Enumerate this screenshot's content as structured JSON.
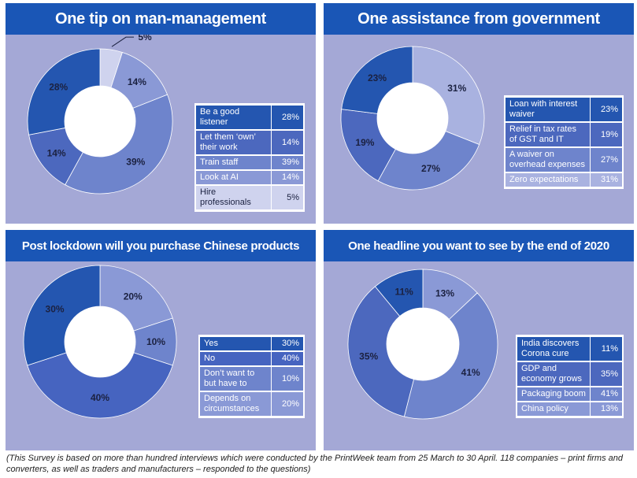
{
  "chart_data": [
    {
      "type": "pie",
      "title": "One tip on man-management",
      "rows": [
        {
          "label": "Be a good listener",
          "value": 28,
          "value_text": "28%",
          "color": "#2456b0"
        },
        {
          "label": "Let them ‘own’ their work",
          "value": 14,
          "value_text": "14%",
          "color": "#4c68be"
        },
        {
          "label": "Train staff",
          "value": 39,
          "value_text": "39%",
          "color": "#6e84cc"
        },
        {
          "label": "Look at AI",
          "value": 14,
          "value_text": "14%",
          "color": "#8a99d6"
        },
        {
          "label": "Hire professionals",
          "value": 5,
          "value_text": "5%",
          "color": "#cfd3ee"
        }
      ],
      "ring_order": [
        4,
        3,
        2,
        1,
        0
      ]
    },
    {
      "type": "pie",
      "title": "One assistance from government",
      "rows": [
        {
          "label": "Loan with interest waiver",
          "value": 23,
          "value_text": "23%",
          "color": "#2456b0"
        },
        {
          "label": "Relief in tax rates of GST and IT",
          "value": 19,
          "value_text": "19%",
          "color": "#4c68be"
        },
        {
          "label": "A waiver on overhead expenses",
          "value": 27,
          "value_text": "27%",
          "color": "#6e84cc"
        },
        {
          "label": "Zero expectations",
          "value": 31,
          "value_text": "31%",
          "color": "#a9b2e0"
        }
      ],
      "ring_order": [
        3,
        2,
        1,
        0
      ]
    },
    {
      "type": "pie",
      "title": "Post lockdown will you purchase Chinese products",
      "rows": [
        {
          "label": "Yes",
          "value": 30,
          "value_text": "30%",
          "color": "#2456b0"
        },
        {
          "label": "No",
          "value": 40,
          "value_text": "40%",
          "color": "#4664c0"
        },
        {
          "label": "Don’t want to but have to",
          "value": 10,
          "value_text": "10%",
          "color": "#6e84cc"
        },
        {
          "label": "Depends on circumstances",
          "value": 20,
          "value_text": "20%",
          "color": "#8a99d6"
        }
      ],
      "ring_order": [
        3,
        2,
        1,
        0
      ]
    },
    {
      "type": "pie",
      "title": "One headline you want to see by the end of 2020",
      "rows": [
        {
          "label": "India discovers Corona cure",
          "value": 11,
          "value_text": "11%",
          "color": "#2456b0"
        },
        {
          "label": "GDP and economy grows",
          "value": 35,
          "value_text": "35%",
          "color": "#4c68be"
        },
        {
          "label": "Packaging boom",
          "value": 41,
          "value_text": "41%",
          "color": "#6e84cc"
        },
        {
          "label": "China policy",
          "value": 13,
          "value_text": "13%",
          "color": "#8a99d6"
        }
      ],
      "ring_order": [
        3,
        2,
        1,
        0
      ]
    }
  ],
  "footnote": "(This Survey is based on more than hundred interviews which were conducted by the PrintWeek team from 25 March to 30 April. 118 companies – print firms and converters, as well as traders and manufacturers – responded to the questions)"
}
